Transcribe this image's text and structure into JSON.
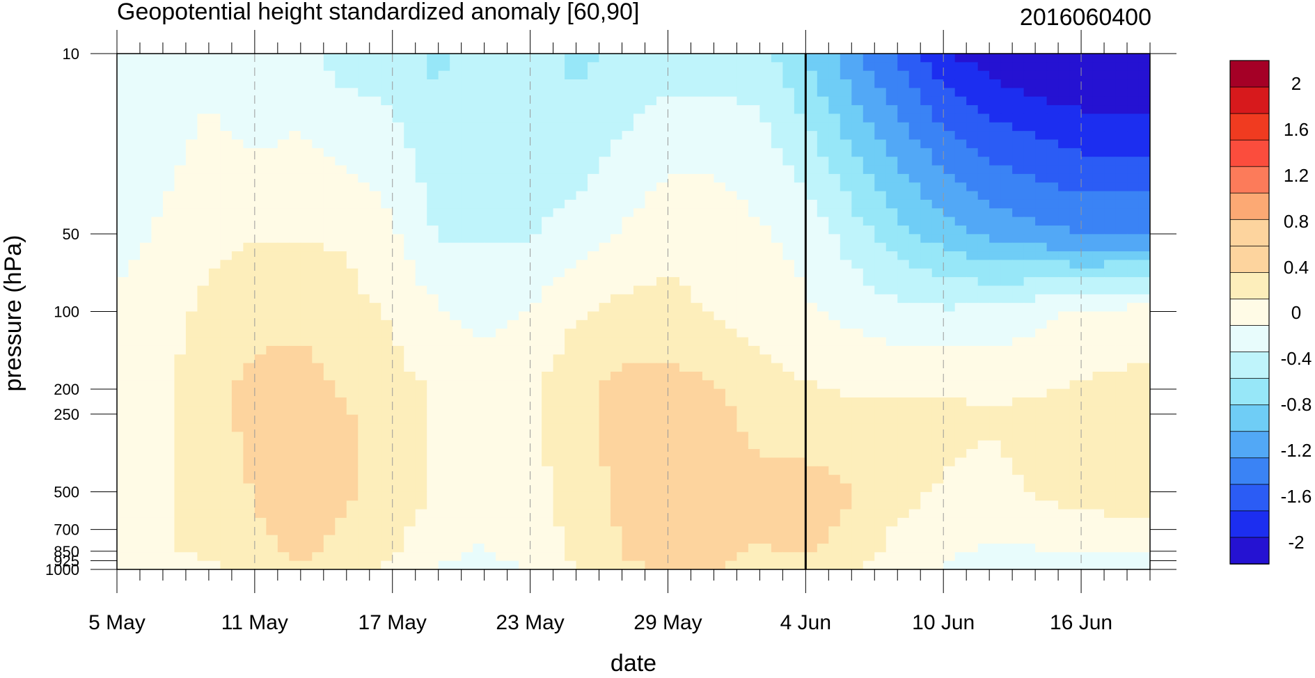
{
  "chart_data": {
    "type": "heatmap",
    "title": "Geopotential height standardized anomaly [60,90]",
    "subtitle": "2016060400",
    "xlabel": "date",
    "ylabel": "pressure (hPa)",
    "x_ticks": [
      "5 May",
      "11 May",
      "17 May",
      "23 May",
      "29 May",
      "4 Jun",
      "10 Jun",
      "16 Jun"
    ],
    "x_tick_days": [
      0,
      6,
      12,
      18,
      24,
      30,
      36,
      42
    ],
    "xlim_days": [
      0,
      45
    ],
    "y_scale": "log",
    "y_ticks": [
      "10",
      "50",
      "100",
      "200",
      "250",
      "500",
      "700",
      "850",
      "925",
      "1000"
    ],
    "y_tick_values": [
      10,
      50,
      100,
      200,
      250,
      500,
      700,
      850,
      925,
      1000
    ],
    "ylim": [
      1000,
      10
    ],
    "forecast_start": "4 Jun",
    "forecast_start_day": 30,
    "grid": "dashed vertical lines at date ticks",
    "colorbar": {
      "labels": [
        "2",
        "1.6",
        "1.2",
        "0.8",
        "0.4",
        "0",
        "-0.4",
        "-0.8",
        "-1.2",
        "-1.6",
        "-2"
      ],
      "colors": [
        "#a50026",
        "#d7191c",
        "#f03b20",
        "#fb4d3d",
        "#fc7b5a",
        "#fca974",
        "#fdd49e",
        "#fdd49e",
        "#fdeebb",
        "#fffbe6",
        "#e8fcfc",
        "#bff4fb",
        "#97e7f8",
        "#6fcdf6",
        "#52a8f6",
        "#3a83f5",
        "#2b5cf5",
        "#1c2ef0",
        "#2512d2"
      ]
    },
    "series": [
      {
        "days": [
          0,
          2,
          4,
          6,
          8,
          10,
          12,
          14,
          16,
          18,
          20,
          22,
          24,
          26,
          28,
          30,
          32,
          34,
          36,
          38,
          40,
          42,
          44
        ],
        "levels": [
          10,
          50,
          100,
          200,
          250,
          500,
          700,
          850,
          925,
          1000
        ]
      }
    ],
    "values": [
      [
        -0.3,
        -0.3,
        -0.2,
        -0.4,
        -0.3,
        -0.5,
        -0.5,
        -0.7,
        -0.4,
        -0.5,
        -0.7,
        -0.6,
        -0.5,
        -0.5,
        -0.5,
        -0.9,
        -1.3,
        -1.7,
        -2.1,
        -2.3,
        -2.4,
        -2.5,
        -2.5
      ],
      [
        -0.2,
        -0.1,
        0.05,
        0.1,
        0.1,
        0.1,
        -0.1,
        -0.4,
        -0.4,
        -0.4,
        -0.3,
        -0.1,
        0.05,
        0.05,
        -0.1,
        -0.2,
        -0.5,
        -0.8,
        -1.0,
        -1.2,
        -1.3,
        -1.4,
        -1.4
      ],
      [
        -0.1,
        0.0,
        0.2,
        0.3,
        0.3,
        0.2,
        0.1,
        -0.1,
        -0.2,
        -0.1,
        0.1,
        0.2,
        0.2,
        0.1,
        0.05,
        -0.1,
        -0.2,
        -0.3,
        -0.35,
        -0.3,
        -0.2,
        -0.1,
        -0.05
      ],
      [
        -0.05,
        0.1,
        0.3,
        0.45,
        0.5,
        0.35,
        0.2,
        0.1,
        0.0,
        0.1,
        0.3,
        0.45,
        0.5,
        0.4,
        0.2,
        0.15,
        0.1,
        0.1,
        0.1,
        0.05,
        0.1,
        0.15,
        0.2
      ],
      [
        0.0,
        0.1,
        0.3,
        0.45,
        0.5,
        0.4,
        0.25,
        0.1,
        0.0,
        0.1,
        0.3,
        0.5,
        0.55,
        0.45,
        0.3,
        0.2,
        0.2,
        0.2,
        0.2,
        0.15,
        0.2,
        0.25,
        0.3
      ],
      [
        0.05,
        0.1,
        0.2,
        0.4,
        0.5,
        0.4,
        0.3,
        0.1,
        -0.05,
        0.05,
        0.2,
        0.45,
        0.55,
        0.5,
        0.45,
        0.5,
        0.4,
        0.2,
        0.1,
        0.05,
        0.15,
        0.2,
        0.2
      ],
      [
        0.05,
        0.1,
        0.2,
        0.35,
        0.45,
        0.35,
        0.2,
        0.0,
        -0.1,
        0.0,
        0.2,
        0.4,
        0.5,
        0.5,
        0.4,
        0.5,
        0.3,
        0.1,
        0.0,
        -0.05,
        0.0,
        0.05,
        0.1
      ],
      [
        0.05,
        0.1,
        0.2,
        0.3,
        0.45,
        0.3,
        0.15,
        -0.05,
        -0.15,
        0.0,
        0.15,
        0.4,
        0.45,
        0.45,
        0.35,
        0.4,
        0.2,
        0.1,
        -0.1,
        -0.15,
        -0.15,
        -0.1,
        -0.1
      ],
      [
        0.0,
        0.05,
        0.1,
        0.25,
        0.4,
        0.25,
        0.1,
        -0.1,
        -0.2,
        0.0,
        0.15,
        0.35,
        0.45,
        0.45,
        0.3,
        0.3,
        0.2,
        0.05,
        -0.1,
        -0.25,
        -0.25,
        -0.2,
        -0.2
      ],
      [
        -0.1,
        -0.05,
        0.05,
        0.2,
        0.35,
        0.2,
        0.05,
        -0.2,
        -0.45,
        -0.1,
        0.1,
        0.3,
        0.4,
        0.4,
        0.3,
        0.2,
        0.1,
        0.0,
        -0.15,
        -0.3,
        -0.3,
        -0.25,
        -0.25
      ]
    ]
  }
}
